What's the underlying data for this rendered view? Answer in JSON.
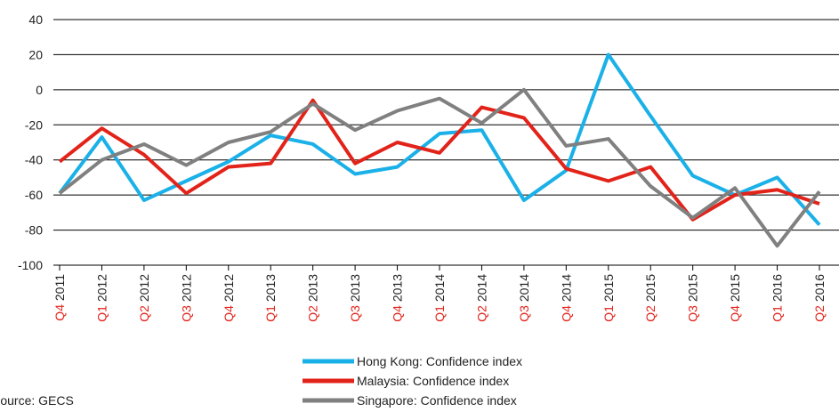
{
  "chart_data": {
    "type": "line",
    "categories": [
      {
        "quarter": "Q4",
        "year": "2011"
      },
      {
        "quarter": "Q1",
        "year": "2012"
      },
      {
        "quarter": "Q2",
        "year": "2012"
      },
      {
        "quarter": "Q3",
        "year": "2012"
      },
      {
        "quarter": "Q4",
        "year": "2012"
      },
      {
        "quarter": "Q1",
        "year": "2013"
      },
      {
        "quarter": "Q2",
        "year": "2013"
      },
      {
        "quarter": "Q3",
        "year": "2013"
      },
      {
        "quarter": "Q4",
        "year": "2013"
      },
      {
        "quarter": "Q1",
        "year": "2014"
      },
      {
        "quarter": "Q2",
        "year": "2014"
      },
      {
        "quarter": "Q3",
        "year": "2014"
      },
      {
        "quarter": "Q4",
        "year": "2014"
      },
      {
        "quarter": "Q1",
        "year": "2015"
      },
      {
        "quarter": "Q2",
        "year": "2015"
      },
      {
        "quarter": "Q3",
        "year": "2015"
      },
      {
        "quarter": "Q4",
        "year": "2015"
      },
      {
        "quarter": "Q1",
        "year": "2016"
      },
      {
        "quarter": "Q2",
        "year": "2016"
      }
    ],
    "series": [
      {
        "name": "Hong Kong: Confidence index",
        "color": "#1ab0e8",
        "values": [
          -59,
          -27,
          -63,
          -52,
          -41,
          -26,
          -31,
          -48,
          -44,
          -25,
          -23,
          -63,
          -46,
          20,
          -15,
          -49,
          -60,
          -50,
          -77
        ]
      },
      {
        "name": "Malaysia: Confidence index",
        "color": "#e2231a",
        "values": [
          -41,
          -22,
          -37,
          -59,
          -44,
          -42,
          -6,
          -42,
          -30,
          -36,
          -10,
          -16,
          -45,
          -52,
          -44,
          -74,
          -60,
          -57,
          -65
        ]
      },
      {
        "name": "Singapore: Confidence index",
        "color": "#808080",
        "values": [
          -59,
          -40,
          -31,
          -43,
          -30,
          -24,
          -8,
          -23,
          -12,
          -5,
          -19,
          0,
          -32,
          -28,
          -55,
          -73,
          -56,
          -89,
          -58
        ]
      }
    ],
    "ylim": [
      -100,
      40
    ],
    "yticks": [
      -100,
      -80,
      -60,
      -40,
      -20,
      0,
      20,
      40
    ],
    "grid": true,
    "quarter_color": "#e2231a",
    "source": "Source: GECS"
  }
}
